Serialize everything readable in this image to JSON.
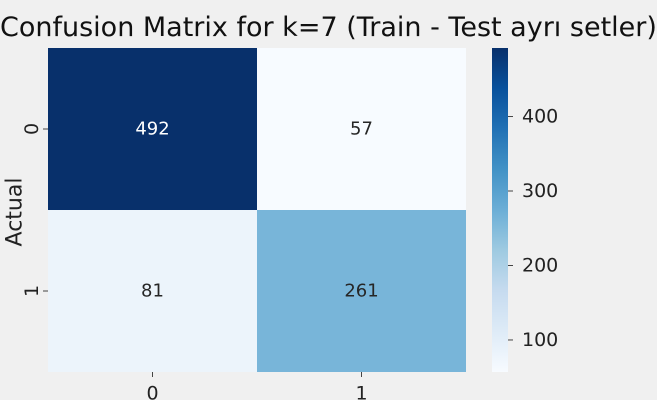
{
  "chart_data": {
    "type": "heatmap",
    "title": "Confusion Matrix for k=7 (Train - Test ayrı setler)",
    "xlabel": "",
    "ylabel": "Actual",
    "x_categories": [
      "0",
      "1"
    ],
    "y_categories": [
      "0",
      "1"
    ],
    "matrix": [
      [
        492,
        57
      ],
      [
        81,
        261
      ]
    ],
    "colormap": "Blues",
    "vmin": 57,
    "vmax": 492,
    "colorbar_ticks": [
      100,
      200,
      300,
      400
    ],
    "grid": false
  }
}
